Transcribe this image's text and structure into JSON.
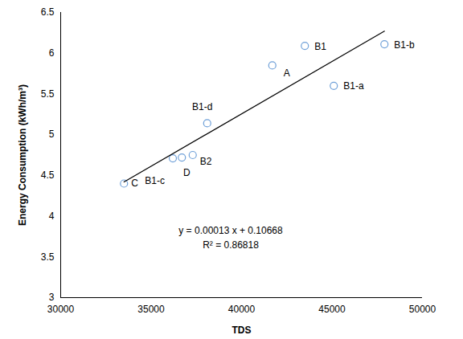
{
  "chart_data": {
    "type": "scatter",
    "x_label": "TDS",
    "y_label": "Energy Consumption (kWh/m³)",
    "xlim": [
      30000,
      50000
    ],
    "xticks": [
      30000,
      35000,
      40000,
      45000,
      50000
    ],
    "ylim": [
      3,
      6.5
    ],
    "yticks": [
      3,
      3.5,
      4,
      4.5,
      5,
      5.5,
      6,
      6.5
    ],
    "grid": false,
    "series": [
      {
        "type": "scatter",
        "marker": "hollow circle",
        "color": "#6fa0d8",
        "labels": [
          "C",
          "B1-c",
          "D",
          "B2",
          "B1-d",
          "A",
          "B1",
          "B1-a",
          "B1-b"
        ],
        "x": [
          33500,
          36200,
          36700,
          37300,
          38100,
          41700,
          43500,
          45100,
          47900
        ],
        "values": [
          4.4,
          4.71,
          4.72,
          4.75,
          5.14,
          5.85,
          6.09,
          5.6,
          6.11
        ]
      },
      {
        "type": "line",
        "line_style": "solid",
        "color": "#000000",
        "x": [
          33500,
          47900
        ],
        "values": [
          4.42,
          6.27
        ]
      }
    ],
    "annotations": [
      "y = 0.00013 x + 0.10668",
      "R² = 0.86818"
    ]
  }
}
